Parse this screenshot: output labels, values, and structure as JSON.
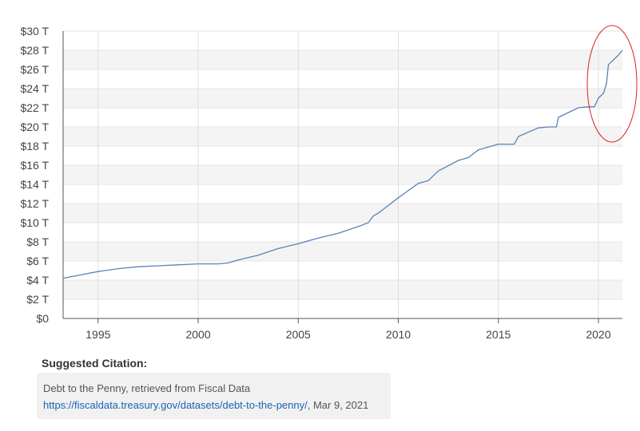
{
  "chart_data": {
    "type": "line",
    "title": "",
    "xlabel": "",
    "ylabel": "",
    "xlim": [
      1993.25,
      2021.2
    ],
    "ylim": [
      0,
      30
    ],
    "x_ticks": [
      1995,
      2000,
      2005,
      2010,
      2015,
      2020
    ],
    "x_tick_labels": [
      "1995",
      "2000",
      "2005",
      "2010",
      "2015",
      "2020"
    ],
    "y_ticks": [
      0,
      2,
      4,
      6,
      8,
      10,
      12,
      14,
      16,
      18,
      20,
      22,
      24,
      26,
      28,
      30
    ],
    "y_tick_labels": [
      "$0",
      "$2 T",
      "$4 T",
      "$6 T",
      "$8 T",
      "$10 T",
      "$12 T",
      "$14 T",
      "$16 T",
      "$18 T",
      "$20 T",
      "$22 T",
      "$24 T",
      "$26 T",
      "$28 T",
      "$30 T"
    ],
    "grid": "horizontal bands",
    "line_color": "#5a82b8",
    "highlight_ellipse_color": "#dd2222",
    "series": [
      {
        "name": "",
        "x": [
          1993.25,
          1994.0,
          1995.0,
          1996.0,
          1997.0,
          1998.0,
          1999.0,
          2000.0,
          2001.0,
          2001.5,
          2002.0,
          2003.0,
          2004.0,
          2005.0,
          2006.0,
          2007.0,
          2008.0,
          2008.5,
          2008.75,
          2009.0,
          2010.0,
          2011.0,
          2011.5,
          2012.0,
          2013.0,
          2013.5,
          2014.0,
          2015.0,
          2015.8,
          2016.0,
          2017.0,
          2017.5,
          2017.9,
          2018.0,
          2019.0,
          2019.5,
          2019.8,
          2020.0,
          2020.25,
          2020.4,
          2020.5,
          2021.0,
          2021.2
        ],
        "y": [
          4.2,
          4.5,
          4.9,
          5.2,
          5.4,
          5.5,
          5.6,
          5.7,
          5.7,
          5.8,
          6.1,
          6.6,
          7.3,
          7.8,
          8.4,
          8.9,
          9.6,
          10.0,
          10.7,
          11.0,
          12.6,
          14.1,
          14.4,
          15.4,
          16.5,
          16.8,
          17.6,
          18.2,
          18.2,
          19.0,
          19.9,
          20.0,
          20.0,
          21.0,
          22.0,
          22.1,
          22.1,
          23.0,
          23.5,
          24.5,
          26.5,
          27.5,
          28.0
        ]
      }
    ]
  },
  "citation": {
    "heading": "Suggested Citation:",
    "line1": "Debt to the Penny, retrieved from Fiscal Data",
    "link": "https://fiscaldata.treasury.gov/datasets/debt-to-the-penny/",
    "suffix": ", Mar 9, 2021"
  }
}
